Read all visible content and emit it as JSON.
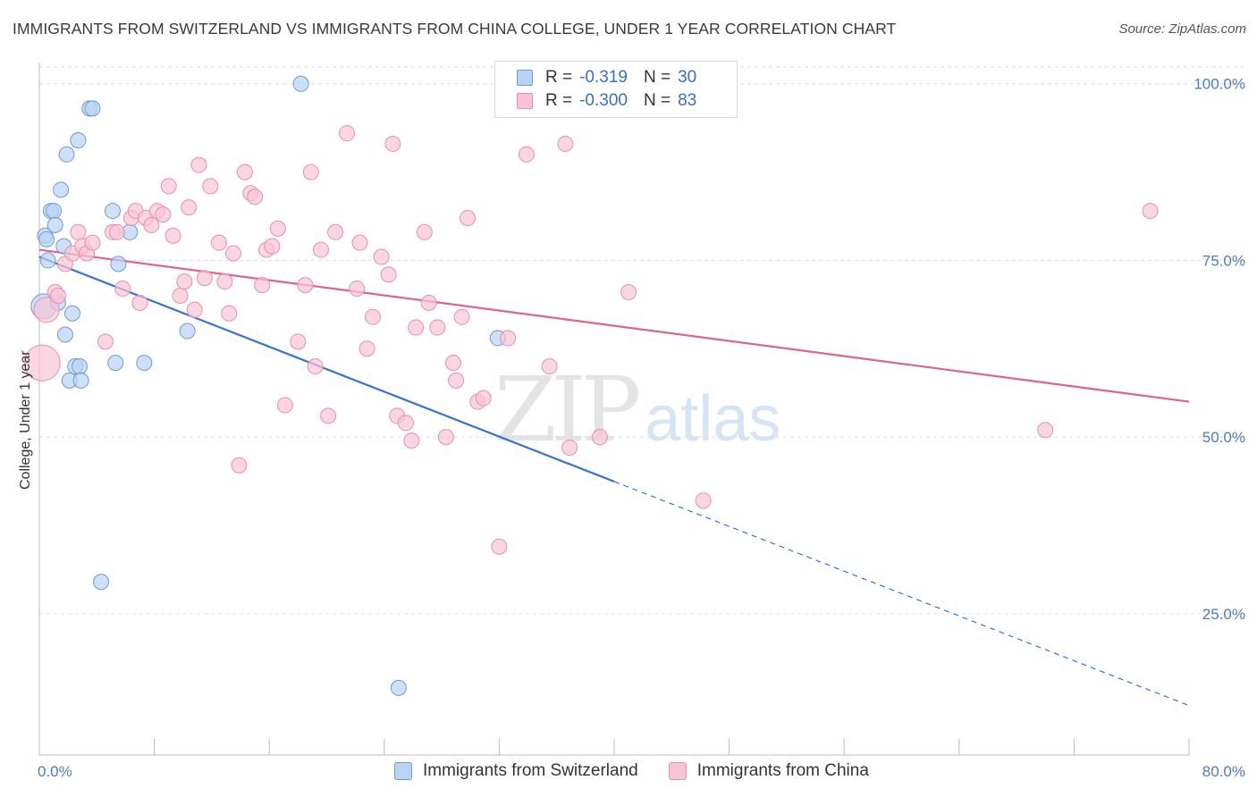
{
  "header": {
    "title": "IMMIGRANTS FROM SWITZERLAND VS IMMIGRANTS FROM CHINA COLLEGE, UNDER 1 YEAR CORRELATION CHART",
    "source": "Source: ZipAtlas.com"
  },
  "watermark": {
    "zip": "ZIP",
    "atlas": "atlas"
  },
  "legend": {
    "rows": [
      {
        "r_label": "R =",
        "r_value": "-0.319",
        "n_label": "N =",
        "n_value": "30"
      },
      {
        "r_label": "R =",
        "r_value": "-0.300",
        "n_label": "N =",
        "n_value": "83"
      }
    ]
  },
  "bottom_legend": {
    "switzerland": "Immigrants from Switzerland",
    "china": "Immigrants from China"
  },
  "colors": {
    "switzerland_fill": "#b8d3f3",
    "switzerland_stroke": "#6e9ad6",
    "switzerland_line": "#3473d1",
    "china_fill": "#f8c4d5",
    "china_stroke": "#e98fae",
    "china_line": "#e0628f",
    "axis_text": "#4a7cc7",
    "grid": "#dcdcdc"
  },
  "chart_data": {
    "type": "scatter",
    "title": "IMMIGRANTS FROM SWITZERLAND VS IMMIGRANTS FROM CHINA COLLEGE, UNDER 1 YEAR CORRELATION CHART",
    "xlabel": "",
    "ylabel": "College, Under 1 year",
    "xlim": [
      0,
      80
    ],
    "ylim": [
      5,
      103
    ],
    "x_tick_labels": [
      "0.0%",
      "80.0%"
    ],
    "y_ticks": [
      25,
      50,
      75,
      100
    ],
    "y_tick_labels": [
      "25.0%",
      "50.0%",
      "75.0%",
      "100.0%"
    ],
    "x_minor_ticks": [
      0,
      8,
      16,
      24,
      32,
      40,
      48,
      56,
      64,
      72,
      80
    ],
    "series": [
      {
        "name": "Immigrants from Switzerland",
        "R": -0.319,
        "N": 30,
        "trend": {
          "x0": 0,
          "y0": 75.5,
          "x1": 40,
          "y1": 43.7,
          "dash_to_x": 80,
          "dash_to_y": 12
        },
        "points": [
          {
            "x": 0.3,
            "y": 68.5,
            "s": 14
          },
          {
            "x": 0.4,
            "y": 78.5
          },
          {
            "x": 0.6,
            "y": 75.0
          },
          {
            "x": 0.8,
            "y": 82.0
          },
          {
            "x": 1.0,
            "y": 82.0
          },
          {
            "x": 1.1,
            "y": 80.0
          },
          {
            "x": 1.3,
            "y": 69.0
          },
          {
            "x": 1.5,
            "y": 85.0
          },
          {
            "x": 1.7,
            "y": 77.0
          },
          {
            "x": 1.8,
            "y": 64.5
          },
          {
            "x": 1.9,
            "y": 90.0
          },
          {
            "x": 2.1,
            "y": 58.0
          },
          {
            "x": 2.3,
            "y": 67.5
          },
          {
            "x": 2.5,
            "y": 60.0
          },
          {
            "x": 2.7,
            "y": 92.0
          },
          {
            "x": 2.8,
            "y": 60.0
          },
          {
            "x": 2.9,
            "y": 58.0
          },
          {
            "x": 3.5,
            "y": 96.5
          },
          {
            "x": 3.7,
            "y": 96.5
          },
          {
            "x": 4.3,
            "y": 29.5
          },
          {
            "x": 5.1,
            "y": 82.0
          },
          {
            "x": 5.3,
            "y": 60.5
          },
          {
            "x": 5.5,
            "y": 74.5
          },
          {
            "x": 6.3,
            "y": 79.0
          },
          {
            "x": 7.3,
            "y": 60.5
          },
          {
            "x": 10.3,
            "y": 65.0
          },
          {
            "x": 18.2,
            "y": 100.0
          },
          {
            "x": 25.0,
            "y": 14.5
          },
          {
            "x": 31.9,
            "y": 64.0
          },
          {
            "x": 0.5,
            "y": 78.0
          }
        ]
      },
      {
        "name": "Immigrants from China",
        "R": -0.3,
        "N": 83,
        "trend": {
          "x0": 0,
          "y0": 76.5,
          "x1": 80,
          "y1": 55.0
        },
        "points": [
          {
            "x": 0.2,
            "y": 60.5,
            "s": 20
          },
          {
            "x": 0.5,
            "y": 68.0,
            "s": 14
          },
          {
            "x": 1.1,
            "y": 70.5
          },
          {
            "x": 1.3,
            "y": 70.0
          },
          {
            "x": 1.8,
            "y": 74.5
          },
          {
            "x": 2.3,
            "y": 76.0
          },
          {
            "x": 2.7,
            "y": 79.0
          },
          {
            "x": 3.0,
            "y": 77.0
          },
          {
            "x": 3.3,
            "y": 76.0
          },
          {
            "x": 3.7,
            "y": 77.5
          },
          {
            "x": 4.6,
            "y": 63.5
          },
          {
            "x": 5.1,
            "y": 79.0
          },
          {
            "x": 5.4,
            "y": 79.0
          },
          {
            "x": 5.8,
            "y": 71.0
          },
          {
            "x": 6.4,
            "y": 81.0
          },
          {
            "x": 6.7,
            "y": 82.0
          },
          {
            "x": 7.0,
            "y": 69.0
          },
          {
            "x": 7.4,
            "y": 81.0
          },
          {
            "x": 7.8,
            "y": 80.0
          },
          {
            "x": 8.2,
            "y": 82.0
          },
          {
            "x": 8.6,
            "y": 81.5
          },
          {
            "x": 9.0,
            "y": 85.5
          },
          {
            "x": 9.3,
            "y": 78.5
          },
          {
            "x": 9.8,
            "y": 70.0
          },
          {
            "x": 10.1,
            "y": 72.0
          },
          {
            "x": 10.4,
            "y": 82.5
          },
          {
            "x": 10.8,
            "y": 68.0
          },
          {
            "x": 11.1,
            "y": 88.5
          },
          {
            "x": 11.5,
            "y": 72.5
          },
          {
            "x": 11.9,
            "y": 85.5
          },
          {
            "x": 12.5,
            "y": 77.5
          },
          {
            "x": 12.9,
            "y": 72.0
          },
          {
            "x": 13.2,
            "y": 67.5
          },
          {
            "x": 13.5,
            "y": 76.0
          },
          {
            "x": 13.9,
            "y": 46.0
          },
          {
            "x": 14.3,
            "y": 87.5
          },
          {
            "x": 14.7,
            "y": 84.5
          },
          {
            "x": 15.0,
            "y": 84.0
          },
          {
            "x": 15.5,
            "y": 71.5
          },
          {
            "x": 15.8,
            "y": 76.5
          },
          {
            "x": 16.2,
            "y": 77.0
          },
          {
            "x": 16.6,
            "y": 79.5
          },
          {
            "x": 17.1,
            "y": 54.5
          },
          {
            "x": 18.0,
            "y": 63.5
          },
          {
            "x": 18.5,
            "y": 71.5
          },
          {
            "x": 18.9,
            "y": 87.5
          },
          {
            "x": 19.2,
            "y": 60.0
          },
          {
            "x": 19.6,
            "y": 76.5
          },
          {
            "x": 20.1,
            "y": 53.0
          },
          {
            "x": 20.6,
            "y": 79.0
          },
          {
            "x": 21.4,
            "y": 93.0
          },
          {
            "x": 22.1,
            "y": 71.0
          },
          {
            "x": 22.3,
            "y": 77.5
          },
          {
            "x": 22.8,
            "y": 62.5
          },
          {
            "x": 23.2,
            "y": 67.0
          },
          {
            "x": 23.8,
            "y": 75.5
          },
          {
            "x": 24.3,
            "y": 73.0
          },
          {
            "x": 24.6,
            "y": 91.5
          },
          {
            "x": 24.9,
            "y": 53.0
          },
          {
            "x": 25.5,
            "y": 52.0
          },
          {
            "x": 25.9,
            "y": 49.5
          },
          {
            "x": 26.2,
            "y": 65.5
          },
          {
            "x": 26.8,
            "y": 79.0
          },
          {
            "x": 27.1,
            "y": 69.0
          },
          {
            "x": 27.7,
            "y": 65.5
          },
          {
            "x": 28.3,
            "y": 50.0
          },
          {
            "x": 28.8,
            "y": 60.5
          },
          {
            "x": 29.0,
            "y": 58.0
          },
          {
            "x": 29.4,
            "y": 67.0
          },
          {
            "x": 29.8,
            "y": 81.0
          },
          {
            "x": 30.5,
            "y": 55.0
          },
          {
            "x": 30.9,
            "y": 55.5
          },
          {
            "x": 32.0,
            "y": 34.5
          },
          {
            "x": 32.6,
            "y": 64.0
          },
          {
            "x": 33.9,
            "y": 90.0
          },
          {
            "x": 35.5,
            "y": 60.0
          },
          {
            "x": 36.6,
            "y": 91.5
          },
          {
            "x": 36.9,
            "y": 48.5
          },
          {
            "x": 39.0,
            "y": 50.0
          },
          {
            "x": 41.0,
            "y": 70.5
          },
          {
            "x": 46.2,
            "y": 41.0
          },
          {
            "x": 70.0,
            "y": 51.0
          },
          {
            "x": 77.3,
            "y": 82.0
          }
        ]
      }
    ]
  }
}
